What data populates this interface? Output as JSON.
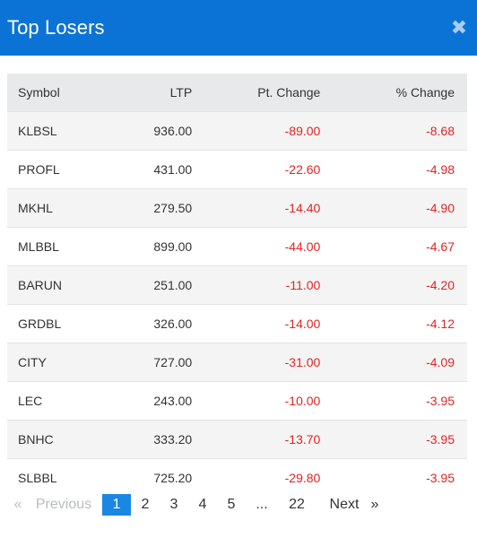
{
  "header": {
    "title": "Top Losers",
    "close_glyph": "✖"
  },
  "table": {
    "columns": [
      "Symbol",
      "LTP",
      "Pt. Change",
      "% Change"
    ],
    "rows": [
      [
        "KLBSL",
        "936.00",
        "-89.00",
        "-8.68"
      ],
      [
        "PROFL",
        "431.00",
        "-22.60",
        "-4.98"
      ],
      [
        "MKHL",
        "279.50",
        "-14.40",
        "-4.90"
      ],
      [
        "MLBBL",
        "899.00",
        "-44.00",
        "-4.67"
      ],
      [
        "BARUN",
        "251.00",
        "-11.00",
        "-4.20"
      ],
      [
        "GRDBL",
        "326.00",
        "-14.00",
        "-4.12"
      ],
      [
        "CITY",
        "727.00",
        "-31.00",
        "-4.09"
      ],
      [
        "LEC",
        "243.00",
        "-10.00",
        "-3.95"
      ],
      [
        "BNHC",
        "333.20",
        "-13.70",
        "-3.95"
      ],
      [
        "SLBBL",
        "725.20",
        "-29.80",
        "-3.95"
      ]
    ]
  },
  "pagination": {
    "first_glyph": "«",
    "previous": "Previous",
    "pages": [
      "1",
      "2",
      "3",
      "4",
      "5",
      "...",
      "22"
    ],
    "active_page": "1",
    "next": "Next",
    "last_glyph": "»"
  },
  "colors": {
    "header": "#0c73d6",
    "negative": "#e02424",
    "active_page": "#1c86e4"
  }
}
